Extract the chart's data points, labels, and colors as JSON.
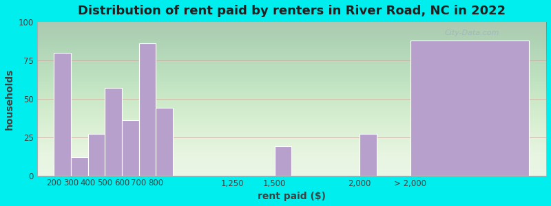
{
  "title": "Distribution of rent paid by renters in River Road, NC in 2022",
  "xlabel": "rent paid ($)",
  "ylabel": "households",
  "bar_color": "#b8a0cc",
  "background_top": "#e8f5e2",
  "background_bottom": "#d8eef8",
  "outer_background": "#00eeee",
  "ylim": [
    0,
    100
  ],
  "yticks": [
    0,
    25,
    50,
    75,
    100
  ],
  "watermark": "City-Data.com",
  "title_fontsize": 13,
  "label_fontsize": 10,
  "tick_fontsize": 8.5,
  "bar_positions": [
    200,
    300,
    400,
    500,
    600,
    700,
    800,
    1500,
    2000,
    2300
  ],
  "bar_heights": [
    80,
    12,
    27,
    57,
    36,
    86,
    44,
    19,
    27,
    88
  ],
  "bar_widths": [
    100,
    100,
    100,
    100,
    100,
    100,
    100,
    100,
    100,
    700
  ],
  "xtick_positions": [
    200,
    300,
    400,
    500,
    600,
    700,
    800,
    1250,
    1500,
    2000,
    2300
  ],
  "xtick_labels": [
    "200",
    "300",
    "400",
    "500",
    "600",
    "700",
    "800",
    "1,250",
    "1,500",
    "2,000",
    "> 2,000"
  ],
  "hline_y": 75,
  "hline_color": "#d08080",
  "xlim_left": 100,
  "xlim_right": 3100
}
